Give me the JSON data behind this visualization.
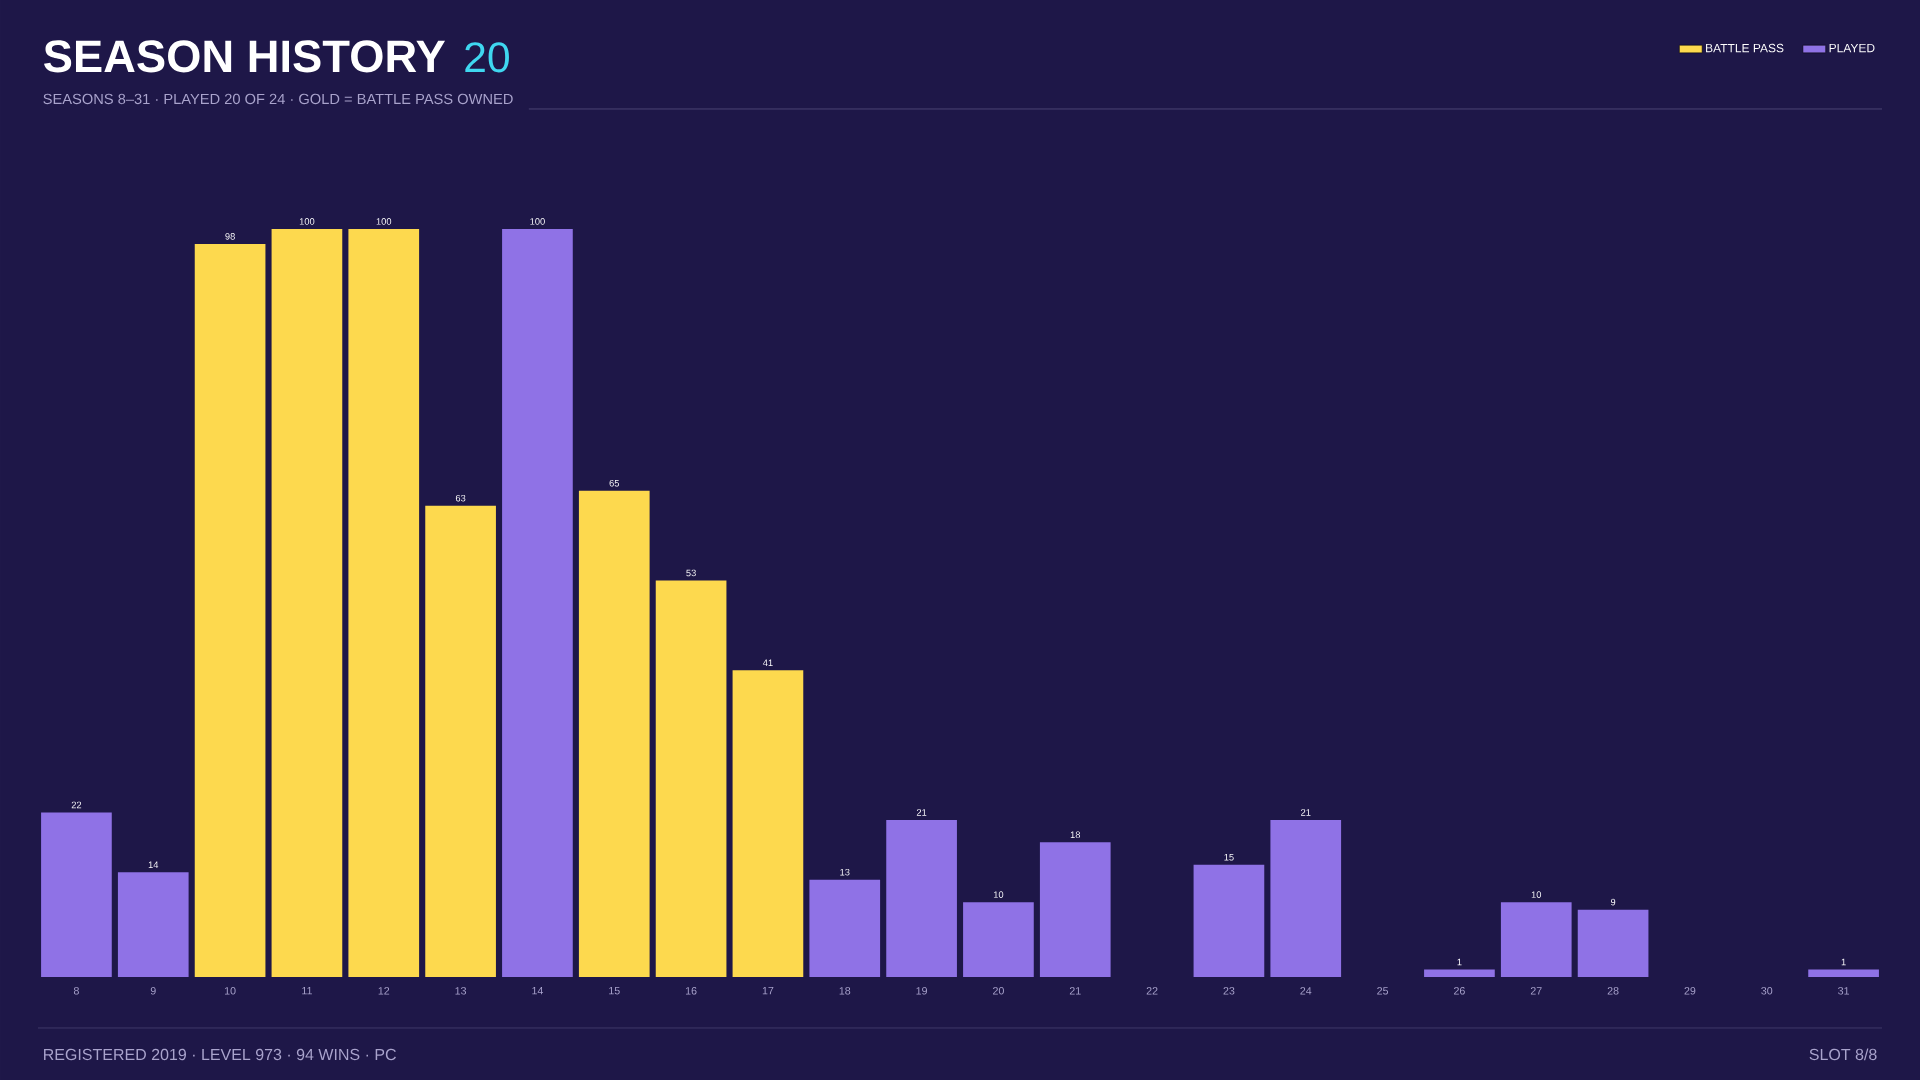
{
  "chart_data": {
    "type": "bar",
    "title": "SEASON HISTORY",
    "subtitle": "SEASONS 8–31 · PLAYED 20 OF 24 · GOLD = BATTLE PASS OWNED",
    "annotations": [
      "20",
      "REGISTERED 2019 · LEVEL 973 · 94 WINS · PC",
      "SLOT 8/8"
    ],
    "categories": [
      "8",
      "9",
      "10",
      "11",
      "12",
      "13",
      "14",
      "15",
      "16",
      "17",
      "18",
      "19",
      "20",
      "21",
      "22",
      "23",
      "24",
      "25",
      "26",
      "27",
      "28",
      "29",
      "30",
      "31"
    ],
    "series": [
      {
        "name": "BATTLE PASS",
        "color": "#fdd94e",
        "values": [
          null,
          null,
          98,
          100,
          100,
          63,
          null,
          65,
          53,
          41,
          null,
          null,
          null,
          null,
          null,
          null,
          null,
          null,
          null,
          null,
          null,
          null,
          null,
          null
        ]
      },
      {
        "name": "PLAYED",
        "color": "#8f72e6",
        "values": [
          22,
          14,
          null,
          null,
          null,
          null,
          100,
          null,
          null,
          null,
          13,
          21,
          10,
          18,
          null,
          15,
          21,
          null,
          1,
          10,
          9,
          null,
          null,
          1
        ]
      }
    ],
    "data_labels": true,
    "legend": "top right"
  }
}
